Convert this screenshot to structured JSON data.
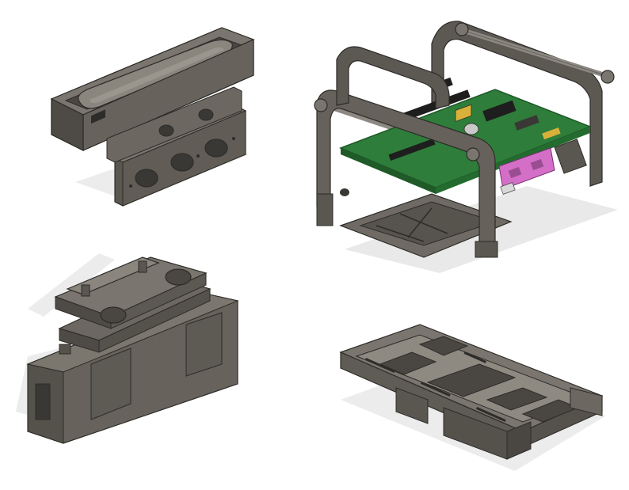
{
  "colors": {
    "background": "#ffffff",
    "shadow": "#e6e6e6",
    "body_dark": "#55524c",
    "body_mid": "#6f6b64",
    "body_light": "#8e8a82",
    "body_highlight": "#a7a39b",
    "edge": "#2e2c29",
    "pcb_green": "#2e7d3a",
    "pcb_dark_green": "#1f5a28",
    "connector_pink": "#d46fc8",
    "component_yellow": "#d9b13a",
    "component_black": "#1e1e1e",
    "metal": "#c9c9c9"
  },
  "parts": [
    {
      "id": "speaker-housing"
    },
    {
      "id": "pcb-cage"
    },
    {
      "id": "mount-with-pads"
    },
    {
      "id": "cradle-tray"
    }
  ]
}
